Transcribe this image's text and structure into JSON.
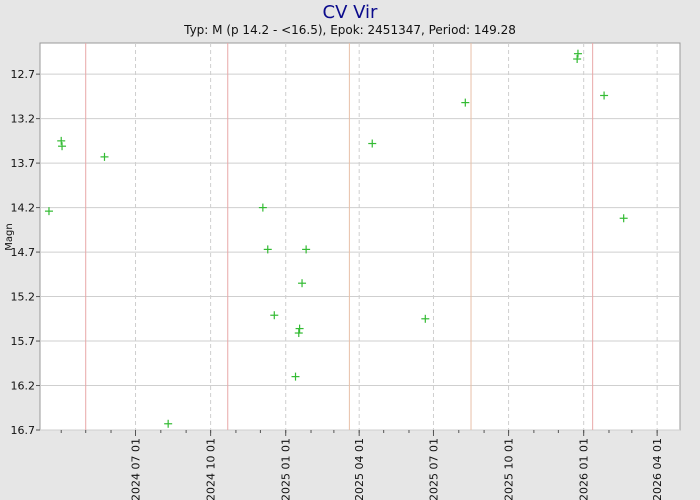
{
  "chart_data": {
    "type": "scatter",
    "title": "CV Vir",
    "subtitle": "Typ: M (p 14.2 - <16.5), Epok: 2451347, Period: 149.28",
    "ylabel": "Magn",
    "xlabel": "",
    "y_inverted": true,
    "ylim": [
      16.7,
      12.35
    ],
    "xlim": [
      "2024-03-06",
      "2026-04-29"
    ],
    "grid": true,
    "y_ticks": [
      12.7,
      13.2,
      13.7,
      14.2,
      14.7,
      15.2,
      15.7,
      16.2,
      16.7
    ],
    "y_tick_labels": [
      "12.7",
      "13.2",
      "13.7",
      "14.2",
      "14.7",
      "15.2",
      "15.7",
      "16.2",
      "16.7"
    ],
    "x_ticks": [
      "2024-07-01",
      "2024-10-01",
      "2025-01-01",
      "2025-04-01",
      "2025-07-01",
      "2025-10-01",
      "2026-01-01",
      "2026-04-01"
    ],
    "x_tick_labels": [
      "2024 07 01",
      "2024 10 01",
      "2025 01 01",
      "2025 04 01",
      "2025 07 01",
      "2025 10 01",
      "2026 01 01",
      "2026 04 01"
    ],
    "marker_lines": [
      {
        "date": "2024-05-01",
        "color": "#e8a8a8"
      },
      {
        "date": "2024-10-22",
        "color": "#e8a8a8"
      },
      {
        "date": "2025-03-20",
        "color": "#e8c0a8"
      },
      {
        "date": "2025-08-16",
        "color": "#e8c0a8"
      },
      {
        "date": "2026-01-12",
        "color": "#e8a8a8"
      }
    ],
    "series": [
      {
        "color": "#33bb33",
        "points": [
          {
            "x": "2024-03-17",
            "y": 14.24
          },
          {
            "x": "2024-04-01",
            "y": 13.45
          },
          {
            "x": "2024-04-02",
            "y": 13.51
          },
          {
            "x": "2024-05-24",
            "y": 13.63
          },
          {
            "x": "2024-08-10",
            "y": 16.63
          },
          {
            "x": "2024-12-04",
            "y": 14.2
          },
          {
            "x": "2024-12-10",
            "y": 14.67
          },
          {
            "x": "2024-12-18",
            "y": 15.41
          },
          {
            "x": "2025-01-13",
            "y": 16.1
          },
          {
            "x": "2025-01-17",
            "y": 15.61
          },
          {
            "x": "2025-01-18",
            "y": 15.56
          },
          {
            "x": "2025-01-21",
            "y": 15.05
          },
          {
            "x": "2025-01-26",
            "y": 14.67
          },
          {
            "x": "2025-04-17",
            "y": 13.48
          },
          {
            "x": "2025-06-21",
            "y": 15.45
          },
          {
            "x": "2025-08-09",
            "y": 13.02
          },
          {
            "x": "2025-12-24",
            "y": 12.53
          },
          {
            "x": "2025-12-25",
            "y": 12.47
          },
          {
            "x": "2026-01-26",
            "y": 12.94
          },
          {
            "x": "2026-02-19",
            "y": 14.32
          }
        ]
      }
    ]
  }
}
